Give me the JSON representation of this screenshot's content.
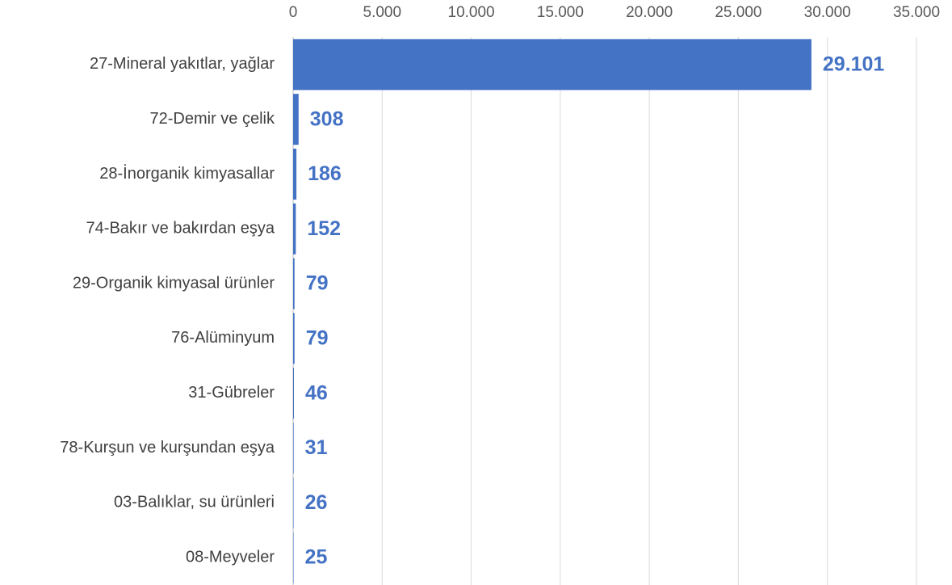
{
  "chart_data": {
    "type": "barh",
    "categories": [
      "27-Mineral yakıtlar, yağlar",
      "72-Demir ve çelik",
      "28-İnorganik kimyasallar",
      "74-Bakır ve bakırdan eşya",
      "29-Organik kimyasal ürünler",
      "76-Alüminyum",
      "31-Gübreler",
      "78-Kurşun ve kurşundan eşya",
      "03-Balıklar, su ürünleri",
      "08-Meyveler"
    ],
    "values": [
      29101,
      308,
      186,
      152,
      79,
      79,
      46,
      31,
      26,
      25
    ],
    "value_labels": [
      "29.101",
      "308",
      "186",
      "152",
      "79",
      "79",
      "46",
      "31",
      "26",
      "25"
    ],
    "color": "#4472c4",
    "xlim": [
      0,
      35000
    ],
    "xticks": [
      0,
      {
        "value": 5000,
        "label": "5.000"
      },
      {
        "value": 10000,
        "label": "10.000"
      },
      {
        "value": 15000,
        "label": "15.000"
      },
      {
        "value": 20000,
        "label": "20.000"
      },
      {
        "value": 25000,
        "label": "25.000"
      },
      {
        "value": 30000,
        "label": "30.000"
      },
      {
        "value": 35000,
        "label": "35.000"
      }
    ],
    "grid": true
  }
}
